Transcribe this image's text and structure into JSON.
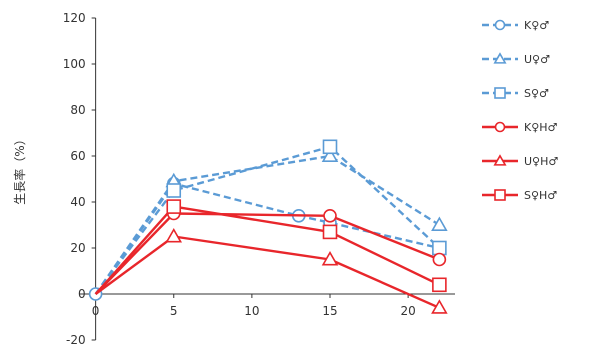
{
  "chart_data": {
    "type": "line",
    "title": "",
    "xlabel": "",
    "ylabel": "生長率（%）",
    "xlim": [
      -1,
      23
    ],
    "ylim": [
      -20,
      120
    ],
    "x_ticks": [
      0,
      5,
      10,
      15,
      20
    ],
    "y_ticks": [
      -20,
      0,
      20,
      40,
      60,
      80,
      100,
      120
    ],
    "grid": false,
    "legend_position": "right",
    "series": [
      {
        "name": "K♀♂",
        "color": "#5b9bd5",
        "dash": true,
        "marker": "circle",
        "points": [
          [
            0,
            0
          ],
          [
            5,
            48
          ],
          [
            13,
            34
          ],
          [
            15,
            31
          ],
          [
            22,
            20
          ]
        ]
      },
      {
        "name": "U♀♂",
        "color": "#5b9bd5",
        "dash": true,
        "marker": "triangle",
        "points": [
          [
            0,
            0
          ],
          [
            5,
            49
          ],
          [
            15,
            60
          ],
          [
            22,
            30
          ]
        ]
      },
      {
        "name": "S♀♂",
        "color": "#5b9bd5",
        "dash": true,
        "marker": "square",
        "points": [
          [
            0,
            0
          ],
          [
            5,
            45
          ],
          [
            15,
            64
          ],
          [
            22,
            20
          ]
        ]
      },
      {
        "name": "K♀H♂",
        "color": "#e8262b",
        "dash": false,
        "marker": "circle",
        "points": [
          [
            0,
            0
          ],
          [
            5,
            35
          ],
          [
            15,
            34
          ],
          [
            22,
            15
          ]
        ]
      },
      {
        "name": "U♀H♂",
        "color": "#e8262b",
        "dash": false,
        "marker": "triangle",
        "points": [
          [
            0,
            0
          ],
          [
            5,
            25
          ],
          [
            15,
            15
          ],
          [
            22,
            -6
          ]
        ]
      },
      {
        "name": "S♀H♂",
        "color": "#e8262b",
        "dash": false,
        "marker": "square",
        "points": [
          [
            0,
            0
          ],
          [
            5,
            38
          ],
          [
            15,
            27
          ],
          [
            22,
            4
          ]
        ]
      }
    ]
  }
}
